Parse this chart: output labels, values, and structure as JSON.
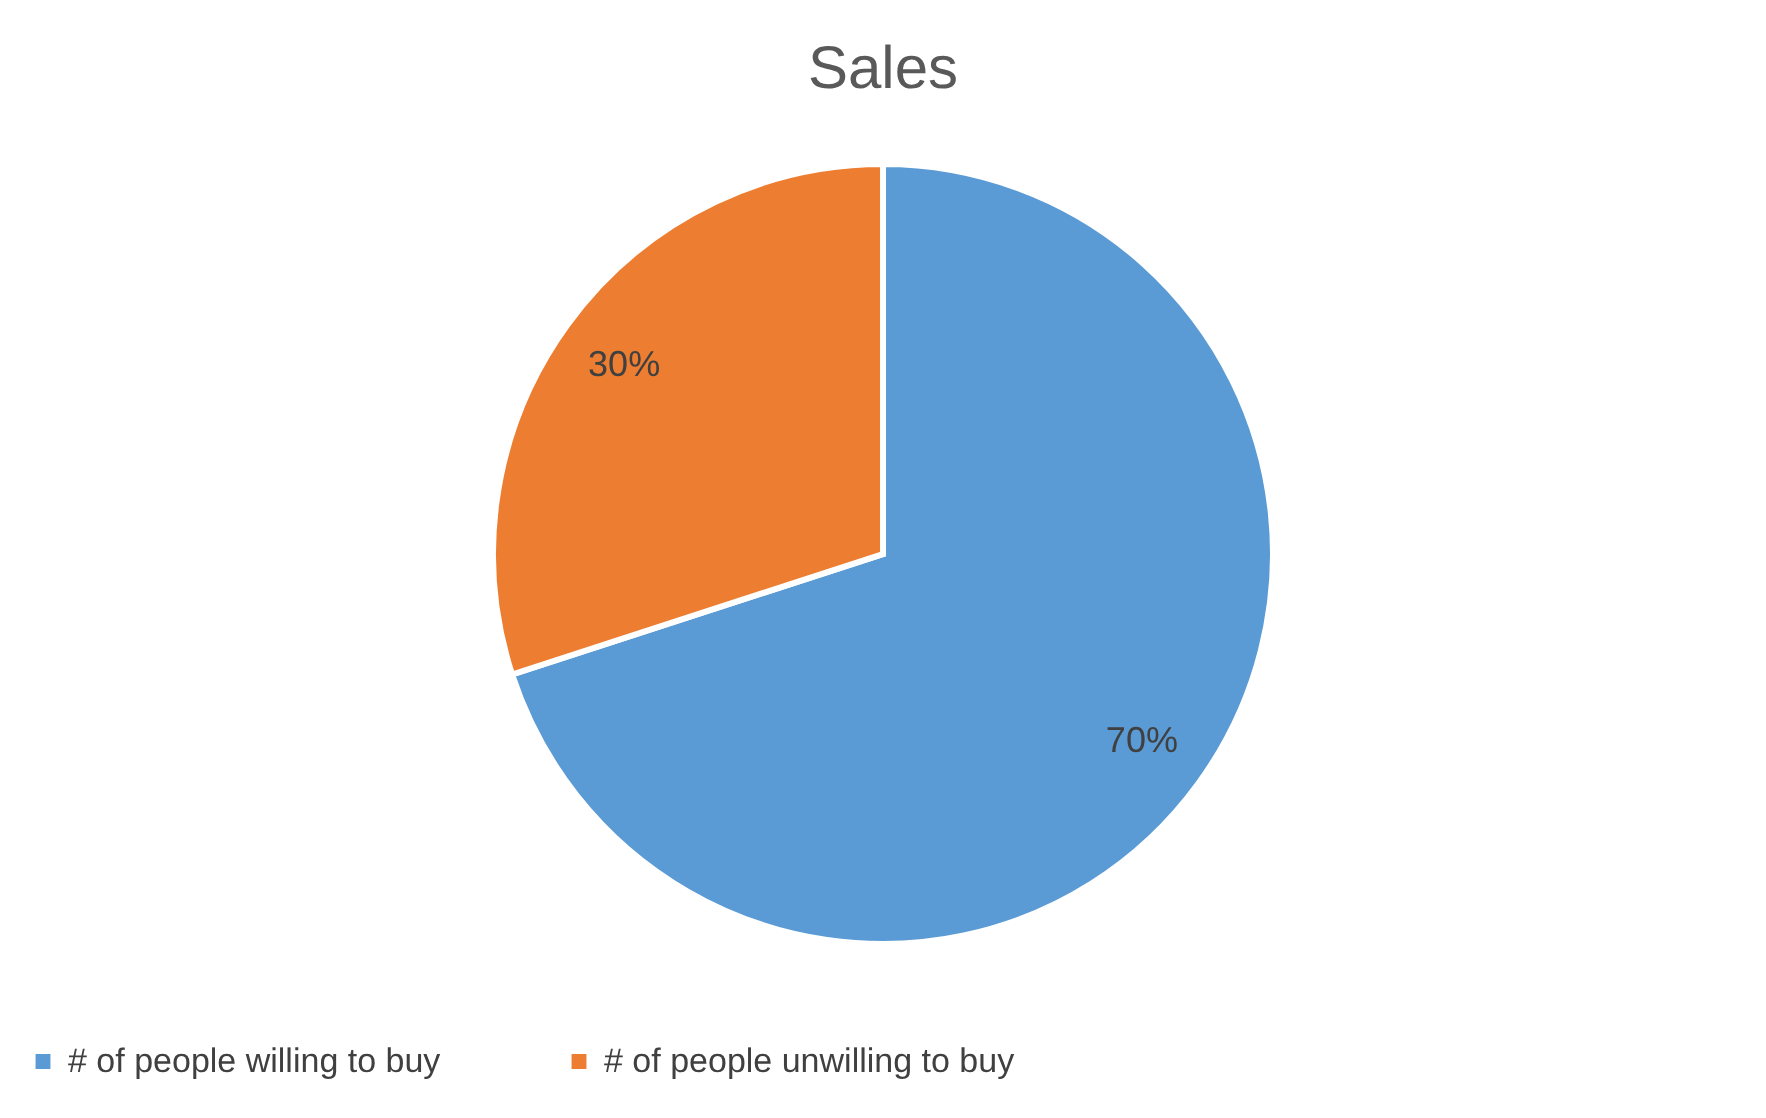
{
  "chart_data": {
    "type": "pie",
    "title": "Sales",
    "categories": [
      "# of people willing to buy",
      "# of people unwilling to buy"
    ],
    "values": [
      70,
      30
    ],
    "value_labels": [
      "70%",
      "30%"
    ],
    "colors": [
      "#5b9bd5",
      "#ed7d31"
    ],
    "legend": "bottom"
  }
}
